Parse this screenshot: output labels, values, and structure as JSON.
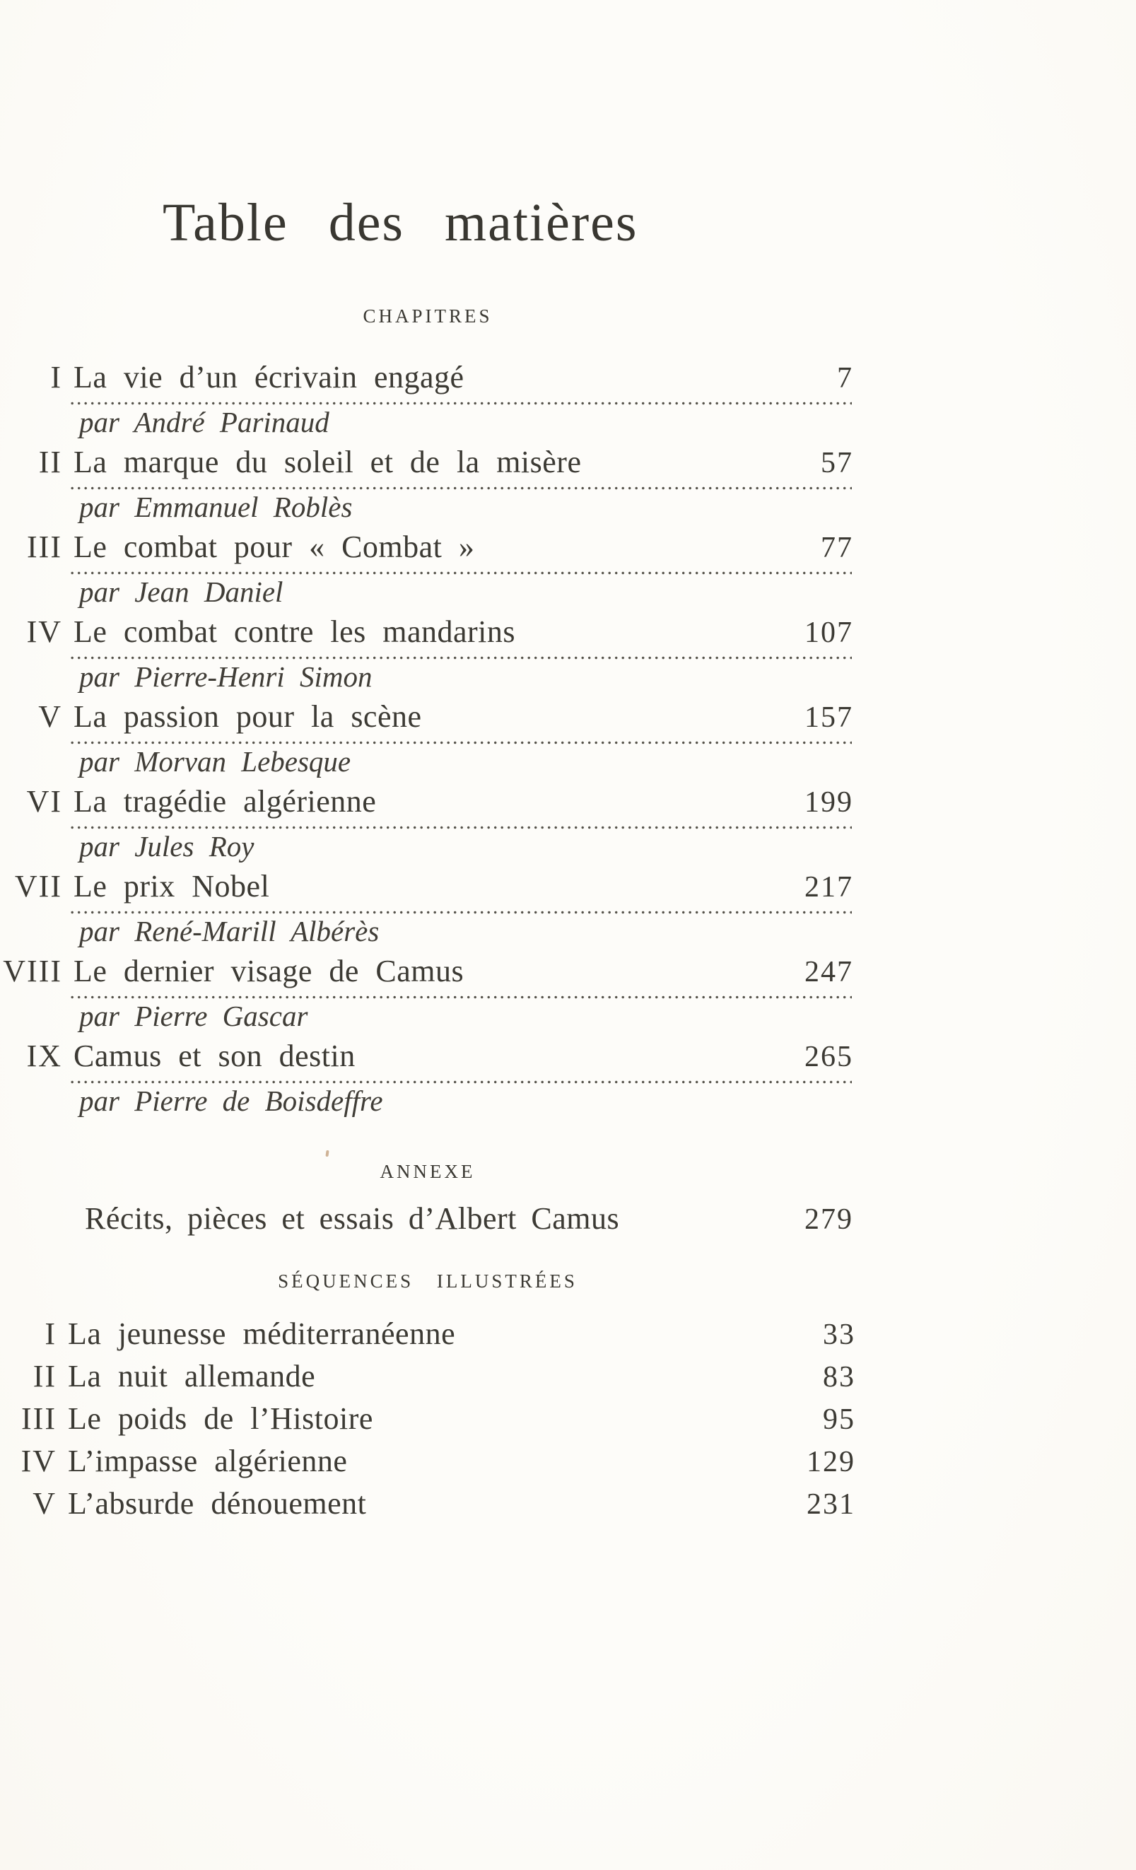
{
  "page": {
    "title": "Table des matières",
    "sections": {
      "chapitres": {
        "heading": "CHAPITRES",
        "entries": [
          {
            "numeral": "I",
            "title": "La vie d’un écrivain engagé",
            "author": "par André Parinaud",
            "page": "7"
          },
          {
            "numeral": "II",
            "title": "La marque du soleil et de la misère",
            "author": "par Emmanuel Roblès",
            "page": "57"
          },
          {
            "numeral": "III",
            "title": "Le combat pour « Combat »",
            "author": "par Jean Daniel",
            "page": "77"
          },
          {
            "numeral": "IV",
            "title": "Le combat contre les mandarins",
            "author": "par Pierre-Henri Simon",
            "page": "107"
          },
          {
            "numeral": "V",
            "title": "La passion pour la scène",
            "author": "par Morvan Lebesque",
            "page": "157"
          },
          {
            "numeral": "VI",
            "title": "La tragédie algérienne",
            "author": "par Jules Roy",
            "page": "199"
          },
          {
            "numeral": "VII",
            "title": "Le prix Nobel",
            "author": "par René-Marill Albérès",
            "page": "217"
          },
          {
            "numeral": "VIII",
            "title": "Le dernier visage de Camus",
            "author": "par Pierre Gascar",
            "page": "247"
          },
          {
            "numeral": "IX",
            "title": "Camus et son destin",
            "author": "par Pierre de Boisdeffre",
            "page": "265"
          }
        ]
      },
      "annexe": {
        "heading": "ANNEXE",
        "entries": [
          {
            "title": "Récits, pièces et essais d’Albert Camus",
            "page": "279"
          }
        ]
      },
      "sequences": {
        "heading": "SÉQUENCES ILLUSTRÉES",
        "entries": [
          {
            "numeral": "I",
            "title": "La jeunesse méditerranéenne",
            "page": "33"
          },
          {
            "numeral": "II",
            "title": "La nuit allemande",
            "page": "83"
          },
          {
            "numeral": "III",
            "title": "Le poids de l’Histoire",
            "page": "95"
          },
          {
            "numeral": "IV",
            "title": "L’impasse algérienne",
            "page": "129"
          },
          {
            "numeral": "V",
            "title": "L’absurde dénouement",
            "page": "231"
          }
        ]
      }
    }
  }
}
